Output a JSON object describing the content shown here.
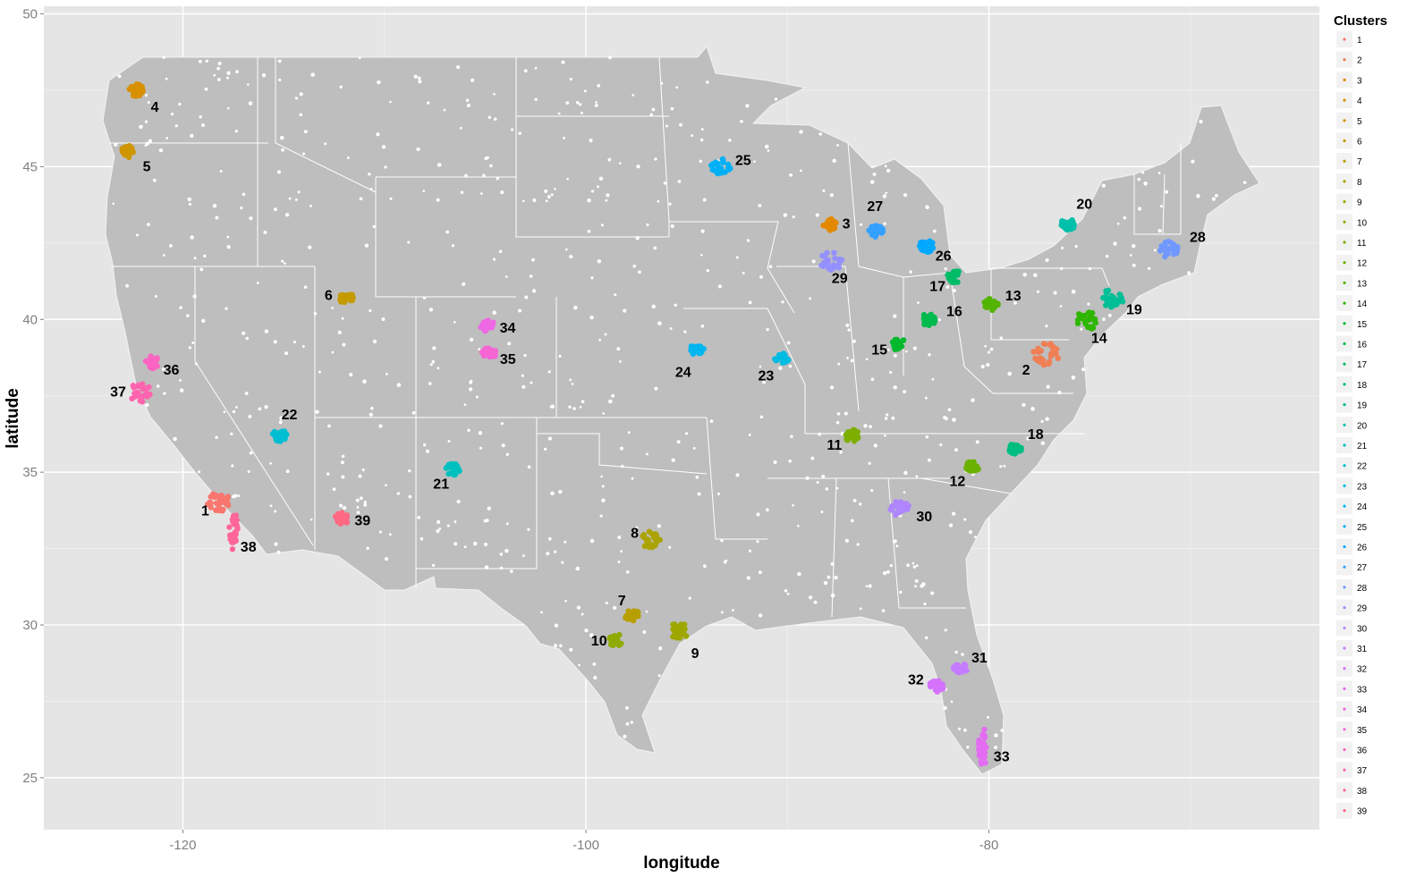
{
  "chart_data": {
    "type": "scatter",
    "xlabel": "longitude",
    "ylabel": "latitude",
    "xlim": [
      -126.9,
      -63.6
    ],
    "ylim": [
      23.3,
      50.25
    ],
    "x_ticks": [
      -120,
      -100,
      -80
    ],
    "y_ticks": [
      25,
      30,
      35,
      40,
      45,
      50
    ],
    "grid": true,
    "legend_title": "Clusters",
    "legend_position": "right",
    "base_layer": {
      "description_color": "#bebebe",
      "point_color": "#ffffff"
    },
    "clusters": [
      {
        "id": "1",
        "lon": -118.2,
        "lat": 34.0,
        "color": "#F8766D"
      },
      {
        "id": "2",
        "lon": -77.2,
        "lat": 38.9,
        "color": "#F07F54"
      },
      {
        "id": "3",
        "lon": -87.9,
        "lat": 43.1,
        "color": "#E38900"
      },
      {
        "id": "4",
        "lon": -122.3,
        "lat": 47.5,
        "color": "#D89000"
      },
      {
        "id": "5",
        "lon": -122.7,
        "lat": 45.5,
        "color": "#CE9600"
      },
      {
        "id": "6",
        "lon": -111.9,
        "lat": 40.7,
        "color": "#C49A00"
      },
      {
        "id": "7",
        "lon": -97.7,
        "lat": 30.3,
        "color": "#B79F00"
      },
      {
        "id": "8",
        "lon": -96.8,
        "lat": 32.8,
        "color": "#ABA300"
      },
      {
        "id": "9",
        "lon": -95.4,
        "lat": 29.8,
        "color": "#9DA700"
      },
      {
        "id": "10",
        "lon": -98.5,
        "lat": 29.5,
        "color": "#8FAA00"
      },
      {
        "id": "11",
        "lon": -86.8,
        "lat": 36.2,
        "color": "#7EAE00"
      },
      {
        "id": "12",
        "lon": -80.8,
        "lat": 35.2,
        "color": "#6BB100"
      },
      {
        "id": "13",
        "lon": -79.9,
        "lat": 40.5,
        "color": "#53B400"
      },
      {
        "id": "14",
        "lon": -75.1,
        "lat": 40.0,
        "color": "#2EB600"
      },
      {
        "id": "15",
        "lon": -84.5,
        "lat": 39.2,
        "color": "#00B92D"
      },
      {
        "id": "16",
        "lon": -83.0,
        "lat": 40.0,
        "color": "#00BA4E"
      },
      {
        "id": "17",
        "lon": -81.7,
        "lat": 41.4,
        "color": "#00BC68"
      },
      {
        "id": "18",
        "lon": -78.7,
        "lat": 35.8,
        "color": "#00BD80"
      },
      {
        "id": "19",
        "lon": -73.9,
        "lat": 40.7,
        "color": "#00BF96"
      },
      {
        "id": "20",
        "lon": -76.1,
        "lat": 43.1,
        "color": "#00C0AB"
      },
      {
        "id": "21",
        "lon": -106.6,
        "lat": 35.1,
        "color": "#00C0BF"
      },
      {
        "id": "22",
        "lon": -115.2,
        "lat": 36.2,
        "color": "#00BED2"
      },
      {
        "id": "23",
        "lon": -90.3,
        "lat": 38.7,
        "color": "#00BBE2"
      },
      {
        "id": "24",
        "lon": -94.5,
        "lat": 39.0,
        "color": "#00B6F0"
      },
      {
        "id": "25",
        "lon": -93.3,
        "lat": 45.0,
        "color": "#00B0F6"
      },
      {
        "id": "26",
        "lon": -83.1,
        "lat": 42.4,
        "color": "#00A8FF"
      },
      {
        "id": "27",
        "lon": -85.6,
        "lat": 42.9,
        "color": "#35A1FF"
      },
      {
        "id": "28",
        "lon": -71.1,
        "lat": 42.3,
        "color": "#7098FF"
      },
      {
        "id": "29",
        "lon": -87.8,
        "lat": 41.9,
        "color": "#9590FF"
      },
      {
        "id": "30",
        "lon": -84.4,
        "lat": 33.8,
        "color": "#AF86FF"
      },
      {
        "id": "31",
        "lon": -81.4,
        "lat": 28.6,
        "color": "#C57CFF"
      },
      {
        "id": "32",
        "lon": -82.6,
        "lat": 28.0,
        "color": "#D573FD"
      },
      {
        "id": "33",
        "lon": -80.3,
        "lat": 26.0,
        "color": "#E36CF2"
      },
      {
        "id": "34",
        "lon": -104.9,
        "lat": 39.8,
        "color": "#EE67E4"
      },
      {
        "id": "35",
        "lon": -104.8,
        "lat": 38.9,
        "color": "#F665D4"
      },
      {
        "id": "36",
        "lon": -121.5,
        "lat": 38.6,
        "color": "#FC64C2"
      },
      {
        "id": "37",
        "lon": -122.1,
        "lat": 37.6,
        "color": "#FF64AE"
      },
      {
        "id": "38",
        "lon": -117.5,
        "lat": 33.1,
        "color": "#FF6699"
      },
      {
        "id": "39",
        "lon": -112.1,
        "lat": 33.5,
        "color": "#FF6983"
      }
    ]
  }
}
